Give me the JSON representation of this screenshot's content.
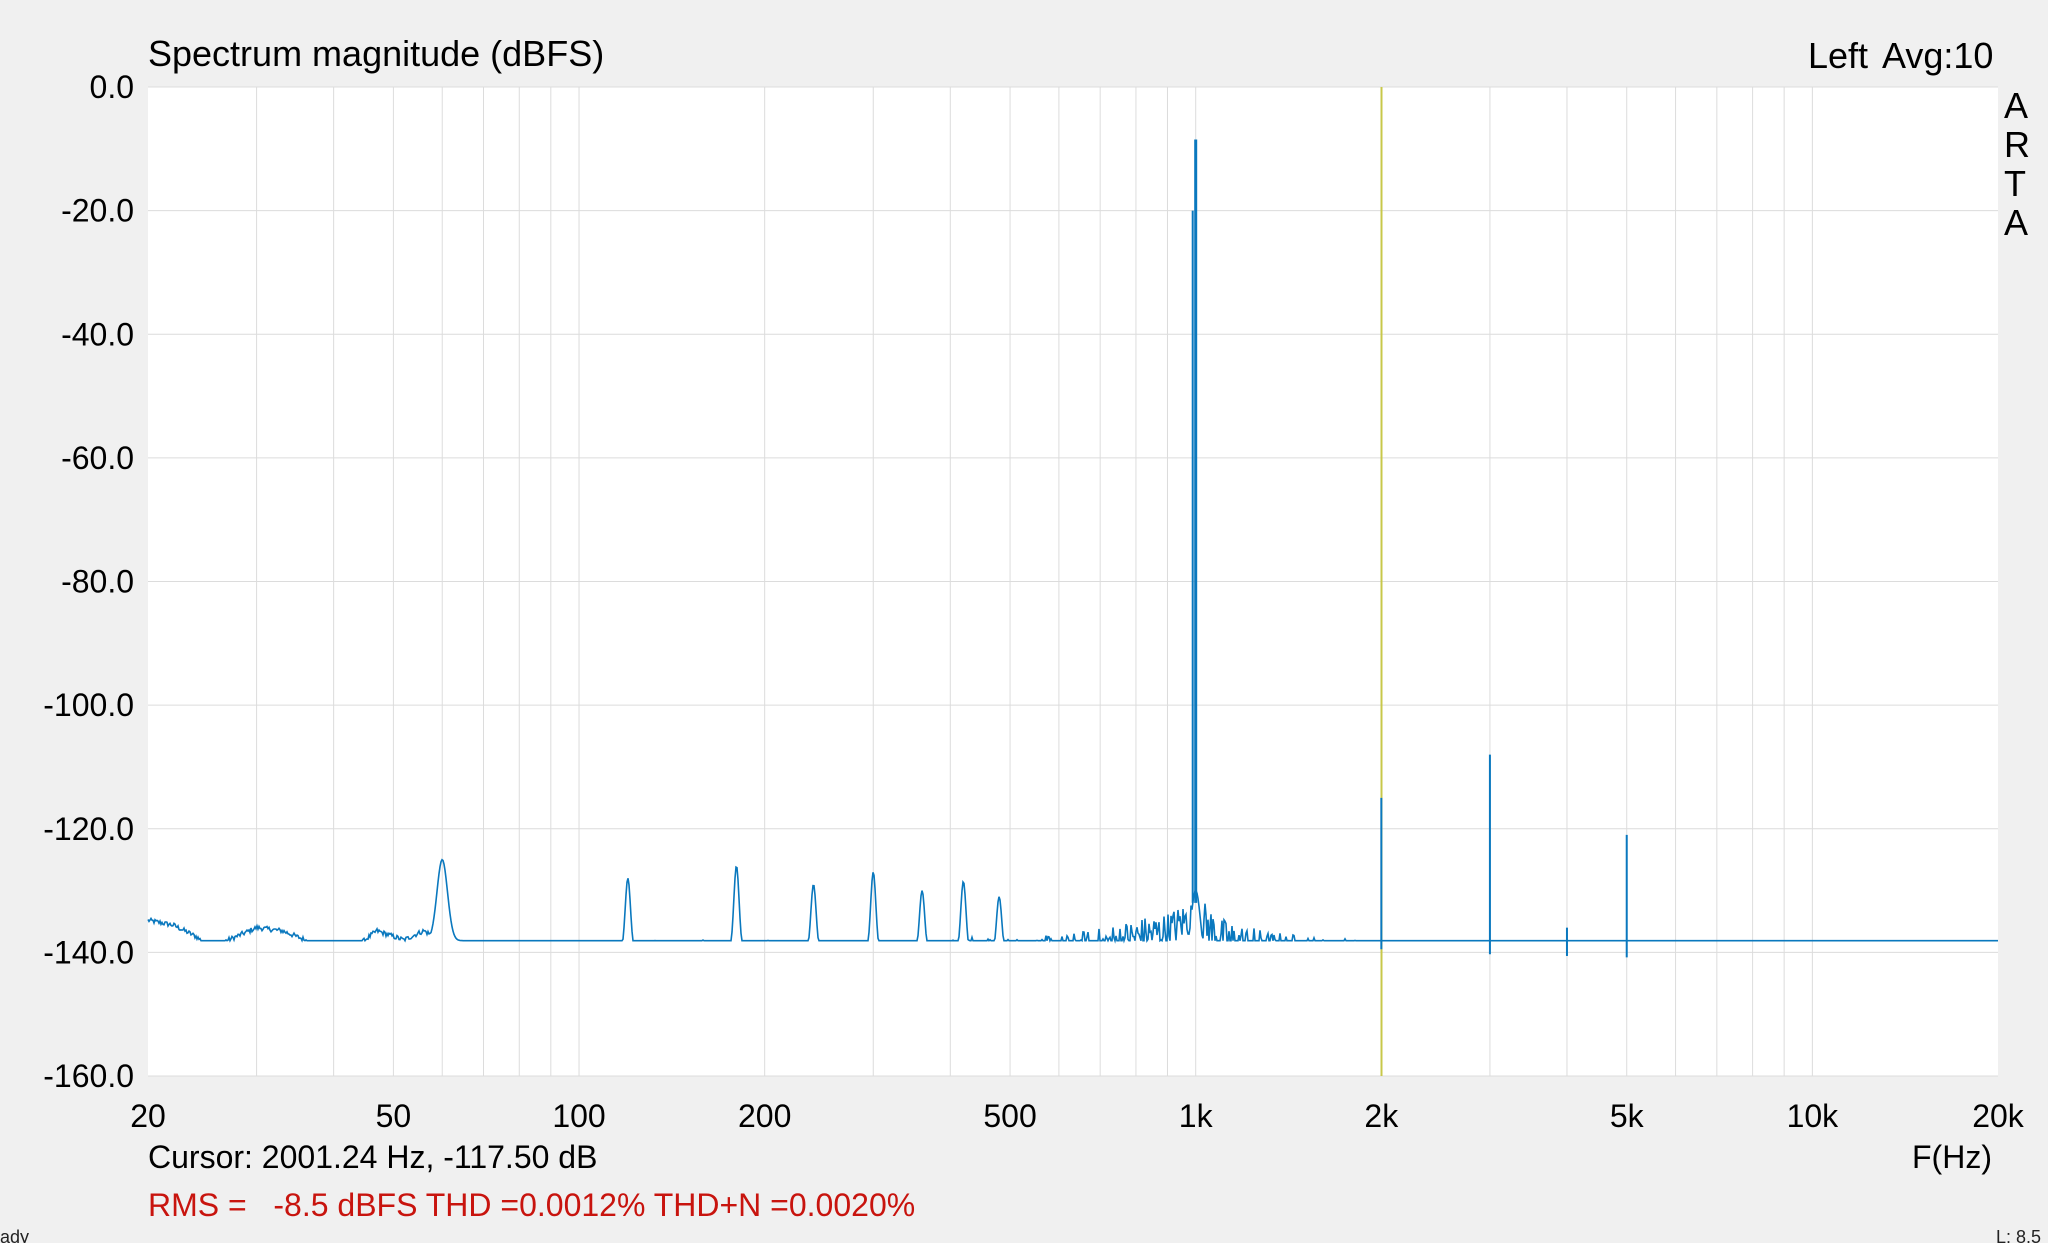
{
  "chart_data": {
    "type": "line",
    "title": "Spectrum magnitude (dBFS)",
    "channel": "Left",
    "averaging": "Avg:10",
    "brand": [
      "A",
      "R",
      "T",
      "A"
    ],
    "xlabel": "F(Hz)",
    "ylabel": "",
    "x_scale": "log",
    "xlim": [
      20,
      20000
    ],
    "ylim": [
      -160,
      0
    ],
    "x_ticks": [
      {
        "value": 20,
        "label": "20"
      },
      {
        "value": 50,
        "label": "50"
      },
      {
        "value": 100,
        "label": "100"
      },
      {
        "value": 200,
        "label": "200"
      },
      {
        "value": 500,
        "label": "500"
      },
      {
        "value": 1000,
        "label": "1k"
      },
      {
        "value": 2000,
        "label": "2k"
      },
      {
        "value": 5000,
        "label": "5k"
      },
      {
        "value": 10000,
        "label": "10k"
      },
      {
        "value": 20000,
        "label": "20k"
      }
    ],
    "y_ticks": [
      {
        "value": 0,
        "label": "0.0"
      },
      {
        "value": -20,
        "label": "-20.0"
      },
      {
        "value": -40,
        "label": "-40.0"
      },
      {
        "value": -60,
        "label": "-60.0"
      },
      {
        "value": -80,
        "label": "-80.0"
      },
      {
        "value": -100,
        "label": "-100.0"
      },
      {
        "value": -120,
        "label": "-120.0"
      },
      {
        "value": -140,
        "label": "-140.0"
      },
      {
        "value": -160,
        "label": "-160.0"
      }
    ],
    "grid": true,
    "series": [
      {
        "color": "#0a78be",
        "noise_floor_shape": [
          [
            20,
            -134.8
          ],
          [
            22,
            -135.6
          ],
          [
            24,
            -137.5
          ],
          [
            25,
            -139
          ],
          [
            27,
            -138
          ],
          [
            30,
            -136
          ],
          [
            33,
            -136.5
          ],
          [
            36,
            -138
          ],
          [
            40,
            -141
          ],
          [
            43,
            -139.5
          ],
          [
            47,
            -136.5
          ],
          [
            52,
            -138
          ],
          [
            56,
            -136.5
          ],
          [
            61,
            -138.5
          ],
          [
            66,
            -139
          ],
          [
            72,
            -139.5
          ],
          [
            80,
            -140
          ],
          [
            90,
            -140.5
          ],
          [
            100,
            -140
          ],
          [
            130,
            -140
          ],
          [
            160,
            -140
          ],
          [
            200,
            -140
          ],
          [
            300,
            -140.3
          ],
          [
            400,
            -140.4
          ],
          [
            500,
            -140.5
          ],
          [
            600,
            -140.2
          ],
          [
            700,
            -139
          ],
          [
            800,
            -137.5
          ],
          [
            900,
            -136.5
          ],
          [
            1000,
            -134
          ],
          [
            1100,
            -138
          ],
          [
            1300,
            -140
          ],
          [
            1600,
            -141
          ],
          [
            2000,
            -141.5
          ],
          [
            3000,
            -142.3
          ],
          [
            5000,
            -142.8
          ],
          [
            10000,
            -143
          ],
          [
            20000,
            -143
          ]
        ],
        "peaks": [
          {
            "freq": 60,
            "level": -125
          },
          {
            "freq": 120,
            "level": -128
          },
          {
            "freq": 180,
            "level": -126
          },
          {
            "freq": 240,
            "level": -129
          },
          {
            "freq": 300,
            "level": -127
          },
          {
            "freq": 360,
            "level": -130
          },
          {
            "freq": 420,
            "level": -128.5
          },
          {
            "freq": 480,
            "level": -131
          },
          {
            "freq": 1000,
            "level": -8.5
          },
          {
            "freq": 2000,
            "level": -115
          },
          {
            "freq": 3000,
            "level": -108
          },
          {
            "freq": 4000,
            "level": -136
          },
          {
            "freq": 5000,
            "level": -121
          }
        ]
      }
    ],
    "cursor": {
      "freq": 2001.24,
      "level": -117.5,
      "color": "#c8c84a"
    }
  },
  "readouts": {
    "cursor_text": "Cursor: 2001.24 Hz, -117.50 dB",
    "rms_text": "RMS =   -8.5 dBFS THD =0.0012% THD+N =0.0020%"
  },
  "statusbar": {
    "left": "ady",
    "right": "L: 8.5"
  }
}
